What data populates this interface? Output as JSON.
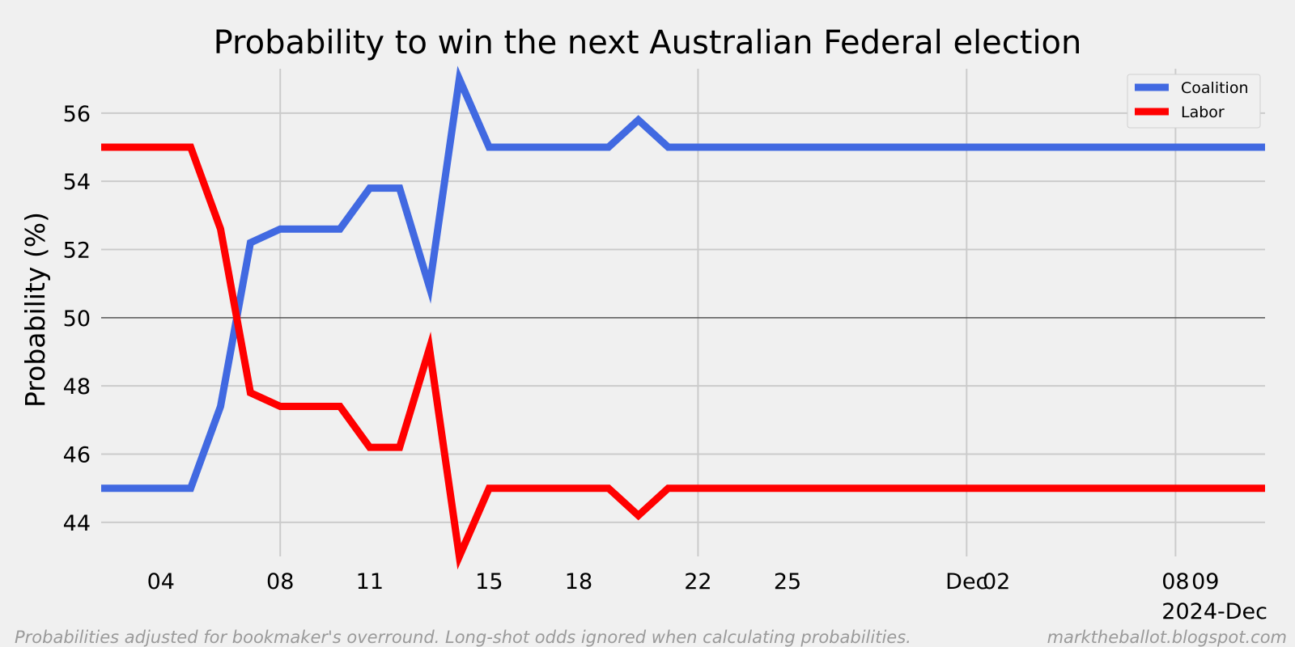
{
  "chart_data": {
    "type": "line",
    "title": "Probability to win the next Australian Federal election",
    "ylabel": "Probability (%)",
    "xlabel": "",
    "x_axis_note": "2024-Dec",
    "ylim": [
      43,
      57.3
    ],
    "yticks": [
      44,
      46,
      48,
      50,
      52,
      54,
      56
    ],
    "xlim": [
      "2024-11-02",
      "2024-12-11"
    ],
    "xticks": [
      {
        "date": "2024-11-04",
        "label": "04"
      },
      {
        "date": "2024-11-08",
        "label": "08"
      },
      {
        "date": "2024-11-11",
        "label": "11"
      },
      {
        "date": "2024-11-15",
        "label": "15"
      },
      {
        "date": "2024-11-18",
        "label": "18"
      },
      {
        "date": "2024-11-22",
        "label": "22"
      },
      {
        "date": "2024-11-25",
        "label": "25"
      },
      {
        "date": "2024-12-01",
        "label": "Dec"
      },
      {
        "date": "2024-12-02",
        "label": "02"
      },
      {
        "date": "2024-12-08",
        "label": "08"
      },
      {
        "date": "2024-12-09",
        "label": "09"
      }
    ],
    "x_gridlines": [
      "2024-11-08",
      "2024-11-22",
      "2024-12-01",
      "2024-12-08"
    ],
    "reference_line": 50,
    "grid": true,
    "legend": "top-right",
    "x": [
      "2024-11-02",
      "2024-11-05",
      "2024-11-06",
      "2024-11-07",
      "2024-11-08",
      "2024-11-10",
      "2024-11-11",
      "2024-11-12",
      "2024-11-13",
      "2024-11-14",
      "2024-11-15",
      "2024-11-19",
      "2024-11-20",
      "2024-11-21",
      "2024-12-11"
    ],
    "series": [
      {
        "name": "Coalition",
        "color": "#4169e1",
        "values": [
          45.0,
          45.0,
          47.4,
          52.2,
          52.6,
          52.6,
          53.8,
          53.8,
          50.9,
          57.0,
          55.0,
          55.0,
          55.8,
          55.0,
          55.0
        ]
      },
      {
        "name": "Labor",
        "color": "#ff0000",
        "values": [
          55.0,
          55.0,
          52.6,
          47.8,
          47.4,
          47.4,
          46.2,
          46.2,
          49.1,
          43.0,
          45.0,
          45.0,
          44.2,
          45.0,
          45.0
        ]
      }
    ]
  },
  "footer": {
    "note": "Probabilities adjusted for bookmaker's overround. Long-shot odds ignored when calculating probabilities.",
    "source": "marktheballot.blogspot.com"
  }
}
